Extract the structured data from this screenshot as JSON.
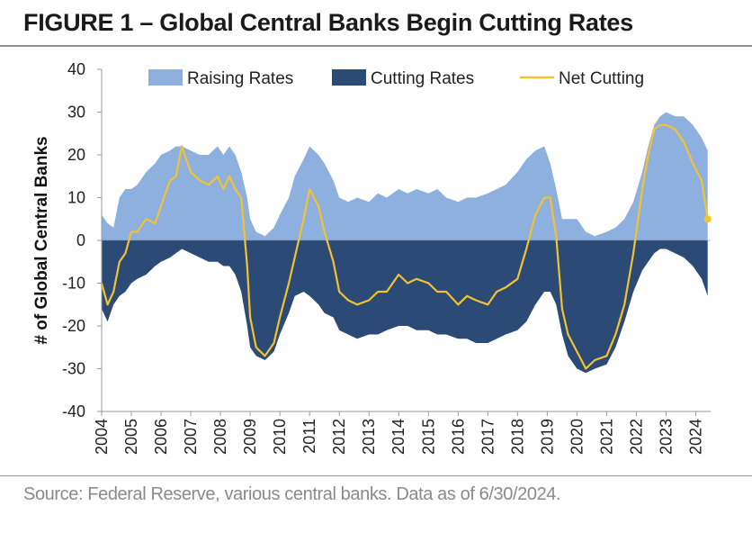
{
  "title": "FIGURE 1 – Global Central Banks Begin Cutting Rates",
  "source": "Source: Federal Reserve, various central banks. Data as of 6/30/2024.",
  "colors": {
    "raising": "#8eb0de",
    "cutting": "#2c4a76",
    "net": "#f2c231"
  },
  "chart_data": {
    "type": "area",
    "ylabel": "# of Global Central Banks",
    "ylim": [
      -40,
      40
    ],
    "yticks": [
      40,
      30,
      20,
      10,
      0,
      -10,
      -20,
      -30,
      -40
    ],
    "xlim": [
      2004,
      2024.5
    ],
    "xticks": [
      "2004",
      "2005",
      "2006",
      "2007",
      "2008",
      "2009",
      "2010",
      "2011",
      "2012",
      "2013",
      "2014",
      "2015",
      "2016",
      "2017",
      "2018",
      "2019",
      "2020",
      "2021",
      "2022",
      "2023",
      "2024"
    ],
    "legend": [
      "Raising Rates",
      "Cutting Rates",
      "Net Cutting"
    ],
    "legend_position": "top",
    "series": [
      {
        "name": "Raising Rates",
        "x": [
          2004.0,
          2004.2,
          2004.4,
          2004.6,
          2004.8,
          2005.0,
          2005.2,
          2005.5,
          2005.8,
          2006.0,
          2006.3,
          2006.5,
          2006.7,
          2007.0,
          2007.3,
          2007.6,
          2007.9,
          2008.1,
          2008.3,
          2008.5,
          2008.7,
          2008.9,
          2009.0,
          2009.2,
          2009.5,
          2009.8,
          2010.0,
          2010.3,
          2010.5,
          2010.8,
          2011.0,
          2011.3,
          2011.5,
          2011.8,
          2012.0,
          2012.3,
          2012.6,
          2013.0,
          2013.3,
          2013.6,
          2014.0,
          2014.3,
          2014.6,
          2015.0,
          2015.3,
          2015.6,
          2016.0,
          2016.3,
          2016.6,
          2017.0,
          2017.3,
          2017.6,
          2018.0,
          2018.3,
          2018.6,
          2018.9,
          2019.1,
          2019.3,
          2019.5,
          2019.7,
          2020.0,
          2020.3,
          2020.6,
          2021.0,
          2021.3,
          2021.6,
          2021.9,
          2022.2,
          2022.4,
          2022.6,
          2022.8,
          2023.0,
          2023.3,
          2023.6,
          2023.9,
          2024.2,
          2024.4
        ],
        "values": [
          6,
          4,
          3,
          10,
          12,
          12,
          13,
          16,
          18,
          20,
          21,
          22,
          22,
          21,
          20,
          20,
          22,
          20,
          22,
          20,
          16,
          10,
          5,
          2,
          1,
          3,
          6,
          10,
          15,
          19,
          22,
          20,
          18,
          14,
          10,
          9,
          10,
          9,
          11,
          10,
          12,
          11,
          12,
          11,
          12,
          10,
          9,
          10,
          10,
          11,
          12,
          13,
          16,
          19,
          21,
          22,
          18,
          12,
          5,
          5,
          5,
          2,
          1,
          2,
          3,
          5,
          9,
          16,
          22,
          27,
          29,
          30,
          29,
          29,
          27,
          24,
          21
        ]
      },
      {
        "name": "Cutting Rates",
        "x": [
          2004.0,
          2004.2,
          2004.4,
          2004.6,
          2004.8,
          2005.0,
          2005.2,
          2005.5,
          2005.8,
          2006.0,
          2006.3,
          2006.5,
          2006.7,
          2007.0,
          2007.3,
          2007.6,
          2007.9,
          2008.1,
          2008.3,
          2008.5,
          2008.7,
          2008.9,
          2009.0,
          2009.2,
          2009.5,
          2009.8,
          2010.0,
          2010.3,
          2010.5,
          2010.8,
          2011.0,
          2011.3,
          2011.5,
          2011.8,
          2012.0,
          2012.3,
          2012.6,
          2013.0,
          2013.3,
          2013.6,
          2014.0,
          2014.3,
          2014.6,
          2015.0,
          2015.3,
          2015.6,
          2016.0,
          2016.3,
          2016.6,
          2017.0,
          2017.3,
          2017.6,
          2018.0,
          2018.3,
          2018.6,
          2018.9,
          2019.1,
          2019.3,
          2019.5,
          2019.7,
          2020.0,
          2020.3,
          2020.6,
          2021.0,
          2021.3,
          2021.6,
          2021.9,
          2022.2,
          2022.4,
          2022.6,
          2022.8,
          2023.0,
          2023.3,
          2023.6,
          2023.9,
          2024.2,
          2024.4
        ],
        "values": [
          -16,
          -19,
          -15,
          -13,
          -12,
          -10,
          -9,
          -8,
          -6,
          -5,
          -4,
          -3,
          -2,
          -3,
          -4,
          -5,
          -5,
          -6,
          -6,
          -8,
          -12,
          -20,
          -25,
          -27,
          -28,
          -26,
          -22,
          -17,
          -13,
          -12,
          -13,
          -15,
          -17,
          -18,
          -21,
          -22,
          -23,
          -22,
          -22,
          -21,
          -20,
          -20,
          -21,
          -21,
          -22,
          -22,
          -23,
          -23,
          -24,
          -24,
          -23,
          -22,
          -21,
          -19,
          -15,
          -12,
          -12,
          -15,
          -22,
          -27,
          -30,
          -31,
          -30,
          -29,
          -25,
          -19,
          -12,
          -7,
          -5,
          -3,
          -2,
          -2,
          -3,
          -4,
          -6,
          -9,
          -13
        ]
      },
      {
        "name": "Net Cutting",
        "x": [
          2004.0,
          2004.2,
          2004.4,
          2004.6,
          2004.8,
          2005.0,
          2005.2,
          2005.5,
          2005.8,
          2006.0,
          2006.3,
          2006.5,
          2006.7,
          2007.0,
          2007.3,
          2007.6,
          2007.9,
          2008.1,
          2008.3,
          2008.5,
          2008.7,
          2008.9,
          2009.0,
          2009.2,
          2009.5,
          2009.8,
          2010.0,
          2010.3,
          2010.5,
          2010.8,
          2011.0,
          2011.3,
          2011.5,
          2011.8,
          2012.0,
          2012.3,
          2012.6,
          2013.0,
          2013.3,
          2013.6,
          2014.0,
          2014.3,
          2014.6,
          2015.0,
          2015.3,
          2015.6,
          2016.0,
          2016.3,
          2016.6,
          2017.0,
          2017.3,
          2017.6,
          2018.0,
          2018.3,
          2018.6,
          2018.9,
          2019.1,
          2019.3,
          2019.5,
          2019.7,
          2020.0,
          2020.3,
          2020.6,
          2021.0,
          2021.3,
          2021.6,
          2021.9,
          2022.2,
          2022.4,
          2022.6,
          2022.8,
          2023.0,
          2023.3,
          2023.6,
          2023.9,
          2024.2,
          2024.4
        ],
        "values": [
          -10,
          -15,
          -12,
          -5,
          -3,
          2,
          2,
          5,
          4,
          8,
          14,
          15,
          22,
          16,
          14,
          13,
          15,
          12,
          15,
          12,
          10,
          -6,
          -18,
          -25,
          -27,
          -24,
          -18,
          -10,
          -4,
          5,
          12,
          8,
          2,
          -5,
          -12,
          -14,
          -15,
          -14,
          -12,
          -12,
          -8,
          -10,
          -9,
          -10,
          -12,
          -12,
          -15,
          -13,
          -14,
          -15,
          -12,
          -11,
          -9,
          -2,
          6,
          10,
          10,
          1,
          -16,
          -22,
          -26,
          -30,
          -28,
          -27,
          -22,
          -15,
          -3,
          12,
          20,
          26,
          27,
          27,
          26,
          23,
          18,
          14,
          5
        ]
      }
    ]
  }
}
